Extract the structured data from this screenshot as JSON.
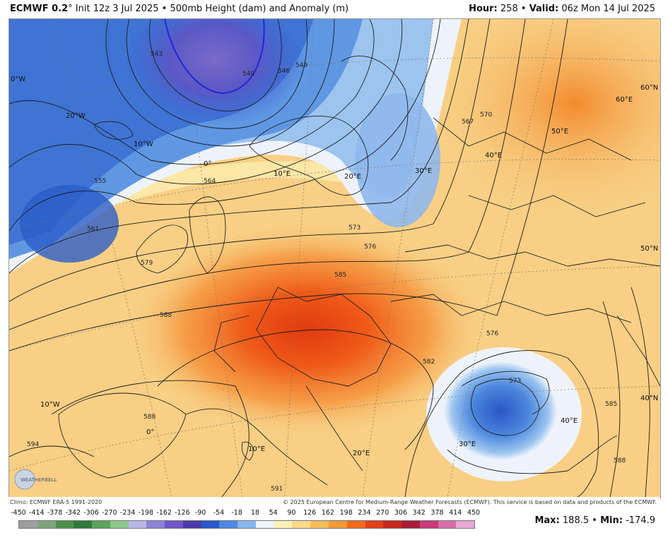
{
  "header": {
    "model": "ECMWF 0.2",
    "degree": "°",
    "init_text": "Init 12z 3 Jul 2025",
    "product": "500mb Height (dam) and Anomaly (m)",
    "hour_label": "Hour:",
    "hour_value": "258",
    "valid_label": "Valid:",
    "valid_value": "06z Mon 14 Jul 2025",
    "separator": "•"
  },
  "map": {
    "meridian_labels": [
      "0°W",
      "20°W",
      "10°W",
      "0°",
      "10°E",
      "20°E",
      "30°E",
      "40°E",
      "50°E",
      "60°E",
      "60°N",
      "50°N",
      "40°N",
      "10°W",
      "0°",
      "10°E",
      "20°E",
      "30°E",
      "40°E"
    ],
    "contour_labels": [
      "543",
      "540",
      "546",
      "549",
      "555",
      "561",
      "564",
      "567",
      "570",
      "573",
      "576",
      "579",
      "585",
      "588",
      "582",
      "576",
      "573",
      "588",
      "591",
      "594",
      "585",
      "588"
    ],
    "logo_text": "WEATHERBELL"
  },
  "credits": {
    "climo": "Climo: ECMWF ERA-5 1991-2020",
    "copyright": "© 2025 European Centre for Medium-Range Weather Forecasts (ECMWF). This service is based on data and products of the ECMWF."
  },
  "colorbar": {
    "ticks": [
      "-450",
      "-414",
      "-378",
      "-342",
      "-306",
      "-270",
      "-234",
      "-198",
      "-162",
      "-126",
      "-90",
      "-54",
      "-18",
      "18",
      "54",
      "90",
      "126",
      "162",
      "198",
      "234",
      "270",
      "306",
      "342",
      "378",
      "414",
      "450"
    ],
    "colors": [
      "#9e9e9e",
      "#7fa57f",
      "#4e8f4e",
      "#2f7a3a",
      "#5aa55a",
      "#8cc68c",
      "#b7b7e6",
      "#8c82d6",
      "#6f55c8",
      "#4b3aa8",
      "#2b58c9",
      "#4f88e0",
      "#86b6ee",
      "#eef3fb",
      "#fbf0b8",
      "#f9d98a",
      "#f7bd5c",
      "#f49a3a",
      "#ef6a1c",
      "#e0401a",
      "#c8281e",
      "#a81c38",
      "#c83a78",
      "#d86ea8",
      "#e8a8d0",
      "#f2d2e8"
    ]
  },
  "maxmin": {
    "max_label": "Max:",
    "max_value": "188.5",
    "min_label": "Min:",
    "min_value": "-174.9",
    "separator": "•"
  }
}
